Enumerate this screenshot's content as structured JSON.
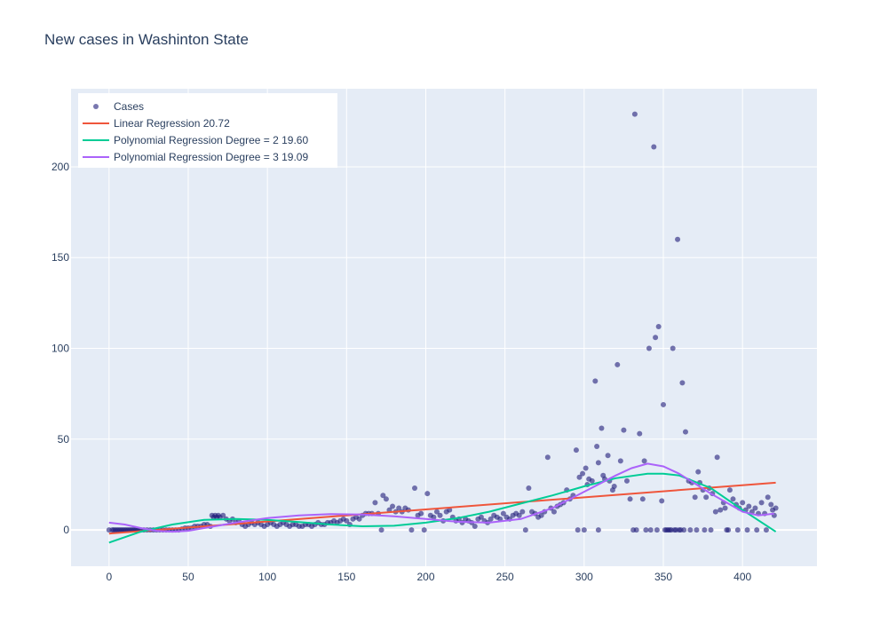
{
  "chart_data": {
    "type": "scatter",
    "title": "New cases in Washinton State",
    "xlabel": "",
    "ylabel": "",
    "xlim": [
      -24,
      447
    ],
    "ylim": [
      -20,
      243
    ],
    "xticks": [
      0,
      50,
      100,
      150,
      200,
      250,
      300,
      350,
      400
    ],
    "yticks": [
      0,
      50,
      100,
      150,
      200
    ],
    "grid": true,
    "legend_position": "top-left",
    "colors": {
      "plot_bg": "#e5ecf6",
      "grid": "#ffffff",
      "cases": "#1f1d7a",
      "linear": "#ef553b",
      "poly2": "#00cc96",
      "poly3": "#ab63fa"
    },
    "legend": [
      {
        "name": "Cases",
        "kind": "marker",
        "color": "#1f1d7a"
      },
      {
        "name": "Linear Regression 20.72",
        "kind": "line",
        "color": "#ef553b"
      },
      {
        "name": "Polynomial Regression Degree = 2 19.60",
        "kind": "line",
        "color": "#00cc96"
      },
      {
        "name": "Polynomial Regression Degree = 3 19.09",
        "kind": "line",
        "color": "#ab63fa"
      }
    ],
    "series": [
      {
        "name": "Cases",
        "mode": "markers",
        "points": [
          [
            0,
            0
          ],
          [
            2,
            0
          ],
          [
            3,
            0
          ],
          [
            4,
            0
          ],
          [
            5,
            0
          ],
          [
            6,
            0
          ],
          [
            7,
            0
          ],
          [
            8,
            0
          ],
          [
            9,
            0
          ],
          [
            10,
            0
          ],
          [
            11,
            0
          ],
          [
            12,
            0
          ],
          [
            13,
            0
          ],
          [
            14,
            0
          ],
          [
            15,
            0
          ],
          [
            16,
            0
          ],
          [
            17,
            0
          ],
          [
            18,
            0
          ],
          [
            19,
            0
          ],
          [
            20,
            0
          ],
          [
            22,
            0
          ],
          [
            24,
            0
          ],
          [
            26,
            0
          ],
          [
            28,
            0
          ],
          [
            30,
            0
          ],
          [
            32,
            0
          ],
          [
            34,
            0
          ],
          [
            36,
            0
          ],
          [
            38,
            0
          ],
          [
            40,
            0
          ],
          [
            42,
            0
          ],
          [
            44,
            0
          ],
          [
            46,
            0.5
          ],
          [
            48,
            1
          ],
          [
            50,
            1
          ],
          [
            52,
            1
          ],
          [
            54,
            2
          ],
          [
            56,
            2
          ],
          [
            58,
            2
          ],
          [
            60,
            3
          ],
          [
            62,
            3
          ],
          [
            64,
            2
          ],
          [
            65,
            8
          ],
          [
            66,
            7
          ],
          [
            67,
            8
          ],
          [
            68,
            7
          ],
          [
            69,
            8
          ],
          [
            70,
            7
          ],
          [
            72,
            8
          ],
          [
            74,
            6
          ],
          [
            76,
            5
          ],
          [
            78,
            6
          ],
          [
            80,
            4
          ],
          [
            82,
            5
          ],
          [
            84,
            3
          ],
          [
            86,
            2
          ],
          [
            88,
            3
          ],
          [
            90,
            4
          ],
          [
            92,
            3
          ],
          [
            94,
            4
          ],
          [
            96,
            3
          ],
          [
            98,
            2
          ],
          [
            100,
            3
          ],
          [
            102,
            4
          ],
          [
            104,
            3
          ],
          [
            106,
            2
          ],
          [
            108,
            3
          ],
          [
            110,
            4
          ],
          [
            112,
            3
          ],
          [
            114,
            2
          ],
          [
            116,
            3
          ],
          [
            118,
            3
          ],
          [
            120,
            2
          ],
          [
            122,
            2
          ],
          [
            124,
            3
          ],
          [
            126,
            3
          ],
          [
            128,
            2
          ],
          [
            130,
            3
          ],
          [
            132,
            4
          ],
          [
            134,
            3
          ],
          [
            136,
            3
          ],
          [
            138,
            4
          ],
          [
            140,
            4
          ],
          [
            142,
            5
          ],
          [
            144,
            4
          ],
          [
            146,
            5
          ],
          [
            148,
            6
          ],
          [
            150,
            5
          ],
          [
            152,
            3
          ],
          [
            154,
            6
          ],
          [
            156,
            7
          ],
          [
            158,
            6
          ],
          [
            160,
            8
          ],
          [
            162,
            9
          ],
          [
            164,
            9
          ],
          [
            166,
            9
          ],
          [
            168,
            15
          ],
          [
            170,
            9
          ],
          [
            172,
            0
          ],
          [
            173,
            19
          ],
          [
            175,
            17
          ],
          [
            177,
            11
          ],
          [
            179,
            13
          ],
          [
            181,
            10
          ],
          [
            183,
            12
          ],
          [
            185,
            10
          ],
          [
            187,
            12
          ],
          [
            189,
            11
          ],
          [
            191,
            0
          ],
          [
            193,
            23
          ],
          [
            195,
            8
          ],
          [
            197,
            9
          ],
          [
            199,
            0
          ],
          [
            201,
            20
          ],
          [
            203,
            8
          ],
          [
            205,
            7
          ],
          [
            207,
            10
          ],
          [
            209,
            8
          ],
          [
            211,
            5
          ],
          [
            213,
            10
          ],
          [
            215,
            11
          ],
          [
            217,
            7
          ],
          [
            219,
            5
          ],
          [
            221,
            6
          ],
          [
            223,
            4
          ],
          [
            225,
            6
          ],
          [
            227,
            5
          ],
          [
            229,
            4
          ],
          [
            231,
            2
          ],
          [
            233,
            6
          ],
          [
            235,
            7
          ],
          [
            237,
            5
          ],
          [
            239,
            4
          ],
          [
            241,
            6
          ],
          [
            243,
            8
          ],
          [
            245,
            7
          ],
          [
            247,
            6
          ],
          [
            249,
            9
          ],
          [
            251,
            7
          ],
          [
            253,
            6
          ],
          [
            255,
            8
          ],
          [
            257,
            9
          ],
          [
            259,
            8
          ],
          [
            261,
            10
          ],
          [
            263,
            0
          ],
          [
            265,
            23
          ],
          [
            267,
            10
          ],
          [
            269,
            9
          ],
          [
            271,
            7
          ],
          [
            273,
            8
          ],
          [
            275,
            10
          ],
          [
            277,
            40
          ],
          [
            279,
            12
          ],
          [
            281,
            10
          ],
          [
            283,
            13
          ],
          [
            285,
            14
          ],
          [
            287,
            15
          ],
          [
            289,
            22
          ],
          [
            291,
            17
          ],
          [
            293,
            19
          ],
          [
            295,
            44
          ],
          [
            297,
            29
          ],
          [
            299,
            31
          ],
          [
            301,
            34
          ],
          [
            302,
            25
          ],
          [
            303,
            28
          ],
          [
            305,
            27
          ],
          [
            307,
            82
          ],
          [
            308,
            46
          ],
          [
            309,
            37
          ],
          [
            311,
            56
          ],
          [
            312,
            30
          ],
          [
            313,
            28
          ],
          [
            315,
            41
          ],
          [
            316,
            27
          ],
          [
            318,
            22
          ],
          [
            319,
            24
          ],
          [
            321,
            91
          ],
          [
            323,
            38
          ],
          [
            325,
            55
          ],
          [
            327,
            27
          ],
          [
            329,
            17
          ],
          [
            331,
            0
          ],
          [
            332,
            229
          ],
          [
            333,
            0
          ],
          [
            335,
            53
          ],
          [
            337,
            17
          ],
          [
            338,
            38
          ],
          [
            339,
            0
          ],
          [
            341,
            100
          ],
          [
            342,
            0
          ],
          [
            344,
            211
          ],
          [
            345,
            106
          ],
          [
            346,
            0
          ],
          [
            347,
            112
          ],
          [
            349,
            16
          ],
          [
            350,
            69
          ],
          [
            352,
            0
          ],
          [
            354,
            0
          ],
          [
            356,
            100
          ],
          [
            357,
            0
          ],
          [
            359,
            160
          ],
          [
            360,
            0
          ],
          [
            362,
            81
          ],
          [
            364,
            54
          ],
          [
            366,
            27
          ],
          [
            368,
            26
          ],
          [
            370,
            18
          ],
          [
            372,
            32
          ],
          [
            373,
            26
          ],
          [
            375,
            22
          ],
          [
            377,
            18
          ],
          [
            379,
            23
          ],
          [
            381,
            20
          ],
          [
            383,
            10
          ],
          [
            384,
            40
          ],
          [
            386,
            11
          ],
          [
            388,
            15
          ],
          [
            389,
            12
          ],
          [
            390,
            0
          ],
          [
            392,
            22
          ],
          [
            394,
            17
          ],
          [
            396,
            14
          ],
          [
            398,
            12
          ],
          [
            400,
            15
          ],
          [
            402,
            11
          ],
          [
            404,
            13
          ],
          [
            406,
            10
          ],
          [
            408,
            12
          ],
          [
            410,
            9
          ],
          [
            412,
            15
          ],
          [
            414,
            9
          ],
          [
            415,
            0
          ],
          [
            416,
            18
          ],
          [
            418,
            14
          ],
          [
            419,
            11
          ],
          [
            420,
            8
          ],
          [
            421,
            12
          ],
          [
            300,
            0
          ],
          [
            309,
            0
          ],
          [
            296,
            0
          ],
          [
            351,
            0
          ],
          [
            353,
            0
          ],
          [
            355,
            0
          ],
          [
            358,
            0
          ],
          [
            361,
            0
          ],
          [
            363,
            0
          ],
          [
            367,
            0
          ],
          [
            371,
            0
          ],
          [
            376,
            0
          ],
          [
            380,
            0
          ],
          [
            391,
            0
          ],
          [
            397,
            0
          ],
          [
            403,
            0
          ],
          [
            409,
            0
          ]
        ]
      },
      {
        "name": "Linear Regression 20.72",
        "mode": "lines",
        "points": [
          [
            0,
            -2
          ],
          [
            421,
            26
          ]
        ]
      },
      {
        "name": "Polynomial Regression Degree = 2 19.60",
        "mode": "lines",
        "points": [
          [
            0,
            -7
          ],
          [
            20,
            -1
          ],
          [
            40,
            3
          ],
          [
            60,
            5.5
          ],
          [
            80,
            6
          ],
          [
            100,
            5.5
          ],
          [
            120,
            4.3
          ],
          [
            140,
            3
          ],
          [
            160,
            2
          ],
          [
            180,
            2.3
          ],
          [
            200,
            4
          ],
          [
            220,
            6.5
          ],
          [
            240,
            10
          ],
          [
            260,
            14.5
          ],
          [
            280,
            19
          ],
          [
            300,
            24
          ],
          [
            320,
            28.5
          ],
          [
            340,
            31
          ],
          [
            350,
            31
          ],
          [
            360,
            30
          ],
          [
            380,
            23
          ],
          [
            400,
            11
          ],
          [
            421,
            -1
          ]
        ]
      },
      {
        "name": "Polynomial Regression Degree = 3 19.09",
        "mode": "lines",
        "points": [
          [
            0,
            4
          ],
          [
            10,
            3
          ],
          [
            20,
            1
          ],
          [
            30,
            -0.5
          ],
          [
            40,
            -1
          ],
          [
            50,
            -0.5
          ],
          [
            60,
            1
          ],
          [
            80,
            4
          ],
          [
            100,
            6.5
          ],
          [
            120,
            8
          ],
          [
            140,
            8.7
          ],
          [
            160,
            8.5
          ],
          [
            180,
            7.5
          ],
          [
            200,
            6
          ],
          [
            220,
            4.5
          ],
          [
            240,
            4
          ],
          [
            260,
            6
          ],
          [
            280,
            12
          ],
          [
            300,
            21
          ],
          [
            320,
            30
          ],
          [
            330,
            34
          ],
          [
            340,
            36.5
          ],
          [
            350,
            35
          ],
          [
            360,
            31
          ],
          [
            380,
            20
          ],
          [
            400,
            10
          ],
          [
            410,
            8
          ],
          [
            420,
            9
          ]
        ]
      }
    ]
  }
}
